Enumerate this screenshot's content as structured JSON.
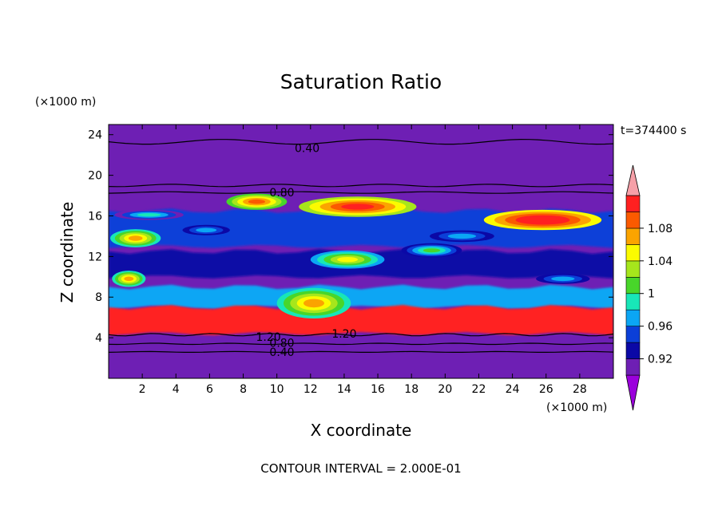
{
  "chart_data": {
    "type": "heatmap",
    "title": "Saturation Ratio",
    "xlabel": "X coordinate",
    "ylabel": "Z coordinate",
    "x_unit": "(×1000 m)",
    "y_unit": "(×1000 m)",
    "time_label": "t=374400 s",
    "footer": "CONTOUR INTERVAL = 2.000E-01",
    "xlim": [
      0,
      30
    ],
    "ylim": [
      0,
      25
    ],
    "x_ticks": [
      "2",
      "4",
      "6",
      "8",
      "10",
      "12",
      "14",
      "16",
      "18",
      "20",
      "22",
      "24",
      "26",
      "28"
    ],
    "y_ticks": [
      "4",
      "8",
      "12",
      "16",
      "20",
      "24"
    ],
    "colorbar": {
      "labels": [
        "0.92",
        "0.96",
        "1",
        "1.04",
        "1.08"
      ],
      "levels": [
        0.9,
        0.92,
        0.94,
        0.96,
        0.98,
        1.0,
        1.02,
        1.04,
        1.06,
        1.08,
        1.1
      ],
      "colors": [
        "#9b00dc",
        "#6e1fb4",
        "#0b08a6",
        "#0b3fd8",
        "#0ba6f4",
        "#18e6b8",
        "#48d62a",
        "#a6e61c",
        "#fbfb00",
        "#fba400",
        "#fb5a00",
        "#ff2020",
        "#f6a0a8"
      ]
    },
    "contour_labels": [
      {
        "text": "0.40",
        "x": 11.8,
        "z": 22.7
      },
      {
        "text": "0.80",
        "x": 10.3,
        "z": 18.3
      },
      {
        "text": "1.20",
        "x": 9.5,
        "z": 4.1
      },
      {
        "text": "1.20",
        "x": 14.0,
        "z": 4.4
      },
      {
        "text": "0.80",
        "x": 10.3,
        "z": 3.5
      },
      {
        "text": "0.40",
        "x": 10.3,
        "z": 2.6
      }
    ],
    "field": {
      "background_value": 0.9,
      "bands": [
        {
          "z": [
            7.0,
            9.0
          ],
          "value": 0.97
        },
        {
          "z": [
            4.4,
            7.0
          ],
          "value": 1.12
        },
        {
          "z": [
            13.0,
            16.5
          ],
          "value": 0.95
        },
        {
          "z": [
            10.0,
            12.5
          ],
          "value": 0.93
        }
      ],
      "blobs": [
        {
          "x": 1.2,
          "z": 9.8,
          "rx": 1.0,
          "rz": 0.8,
          "value": 1.06
        },
        {
          "x": 1.6,
          "z": 13.8,
          "rx": 1.5,
          "rz": 0.9,
          "value": 1.07
        },
        {
          "x": 8.8,
          "z": 17.4,
          "rx": 1.8,
          "rz": 0.8,
          "value": 1.08
        },
        {
          "x": 14.8,
          "z": 16.9,
          "rx": 3.5,
          "rz": 1.0,
          "value": 1.1
        },
        {
          "x": 25.8,
          "z": 15.6,
          "rx": 3.5,
          "rz": 1.0,
          "value": 1.12
        },
        {
          "x": 14.2,
          "z": 11.7,
          "rx": 2.2,
          "rz": 0.9,
          "value": 1.04
        },
        {
          "x": 19.2,
          "z": 12.6,
          "rx": 1.8,
          "rz": 0.7,
          "value": 1.0
        },
        {
          "x": 2.4,
          "z": 16.1,
          "rx": 2.5,
          "rz": 0.6,
          "value": 0.98
        },
        {
          "x": 12.2,
          "z": 7.4,
          "rx": 2.2,
          "rz": 1.5,
          "value": 1.06
        },
        {
          "x": 5.8,
          "z": 14.6,
          "rx": 2.2,
          "rz": 0.8,
          "value": 0.97
        },
        {
          "x": 21.0,
          "z": 14.0,
          "rx": 3.0,
          "rz": 0.9,
          "value": 0.97
        },
        {
          "x": 27.0,
          "z": 9.8,
          "rx": 2.5,
          "rz": 0.8,
          "value": 0.97
        }
      ]
    }
  }
}
